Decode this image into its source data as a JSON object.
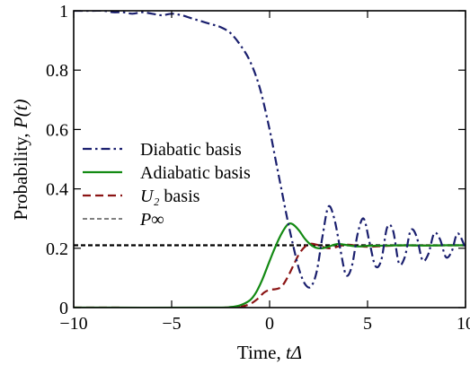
{
  "chart_data": {
    "type": "line",
    "title": "",
    "xlabel": "Time, ",
    "xlabel_italic": "tΔ",
    "ylabel": "Probability, ",
    "ylabel_italic": "P(t)",
    "xlim": [
      -10,
      10
    ],
    "ylim": [
      0,
      1
    ],
    "xticks": [
      -10,
      -5,
      0,
      5,
      10
    ],
    "xtick_labels": [
      "−10",
      "−5",
      "0",
      "5",
      "10"
    ],
    "yticks": [
      0,
      0.2,
      0.4,
      0.6,
      0.8,
      1
    ],
    "ytick_labels": [
      "0",
      "0.2",
      "0.4",
      "0.6",
      "0.8",
      "1"
    ],
    "grid": false,
    "legend_position": "center-left",
    "series": [
      {
        "name": "Diabatic basis",
        "color": "#1a1f6e",
        "dash": "dashdot",
        "x": [
          -10,
          -9.5,
          -9,
          -8.5,
          -8,
          -7.5,
          -7,
          -6.5,
          -6,
          -5.5,
          -5,
          -4.5,
          -4,
          -3.5,
          -3,
          -2.5,
          -2,
          -1.5,
          -1,
          -0.5,
          0,
          0.3,
          0.6,
          0.9,
          1.2,
          1.5,
          1.8,
          2.1,
          2.4,
          2.7,
          3.0,
          3.3,
          3.6,
          3.9,
          4.2,
          4.5,
          4.8,
          5.1,
          5.4,
          5.7,
          6.0,
          6.3,
          6.6,
          6.9,
          7.2,
          7.5,
          7.8,
          8.1,
          8.4,
          8.7,
          9.0,
          9.3,
          9.6,
          10
        ],
        "y": [
          1.0,
          1.0,
          1.0,
          1.0,
          0.995,
          0.995,
          0.99,
          0.995,
          0.99,
          0.985,
          0.99,
          0.985,
          0.975,
          0.965,
          0.955,
          0.945,
          0.925,
          0.885,
          0.83,
          0.74,
          0.6,
          0.5,
          0.4,
          0.3,
          0.21,
          0.13,
          0.08,
          0.07,
          0.12,
          0.24,
          0.34,
          0.3,
          0.2,
          0.11,
          0.14,
          0.25,
          0.3,
          0.22,
          0.14,
          0.16,
          0.27,
          0.26,
          0.15,
          0.17,
          0.26,
          0.24,
          0.16,
          0.18,
          0.25,
          0.23,
          0.17,
          0.19,
          0.25,
          0.2
        ]
      },
      {
        "name": "Adiabatic basis",
        "color": "#138a13",
        "dash": "solid",
        "x": [
          -10,
          -3,
          -2,
          -1.5,
          -1,
          -0.7,
          -0.4,
          -0.1,
          0.2,
          0.5,
          0.8,
          1.0,
          1.2,
          1.5,
          1.8,
          2.1,
          2.4,
          2.7,
          3.0,
          3.3,
          3.6,
          4.0,
          4.5,
          5,
          6,
          7,
          8,
          9,
          10
        ],
        "y": [
          0,
          0,
          0.002,
          0.008,
          0.025,
          0.05,
          0.09,
          0.14,
          0.19,
          0.235,
          0.27,
          0.283,
          0.28,
          0.26,
          0.232,
          0.212,
          0.201,
          0.2,
          0.205,
          0.212,
          0.214,
          0.21,
          0.206,
          0.208,
          0.209,
          0.21,
          0.209,
          0.21,
          0.21
        ]
      },
      {
        "name": "U₂ basis",
        "color": "#8b1414",
        "dash": "dashed",
        "x": [
          -10,
          -2,
          -1.5,
          -1,
          -0.6,
          -0.3,
          0,
          0.3,
          0.6,
          0.9,
          1.2,
          1.5,
          1.8,
          2.1,
          2.4,
          2.7,
          3.0,
          3.3,
          3.6,
          4.0,
          4.5,
          5,
          6,
          7,
          8,
          9,
          10
        ],
        "y": [
          0,
          0,
          0.003,
          0.012,
          0.03,
          0.05,
          0.06,
          0.062,
          0.07,
          0.1,
          0.14,
          0.18,
          0.205,
          0.215,
          0.212,
          0.205,
          0.2,
          0.202,
          0.208,
          0.212,
          0.208,
          0.205,
          0.208,
          0.21,
          0.209,
          0.21,
          0.21
        ]
      },
      {
        "name": "P∞",
        "color": "#000000",
        "dash": "thin-dashed",
        "x": [
          -10,
          10
        ],
        "y": [
          0.21,
          0.21
        ]
      }
    ]
  }
}
